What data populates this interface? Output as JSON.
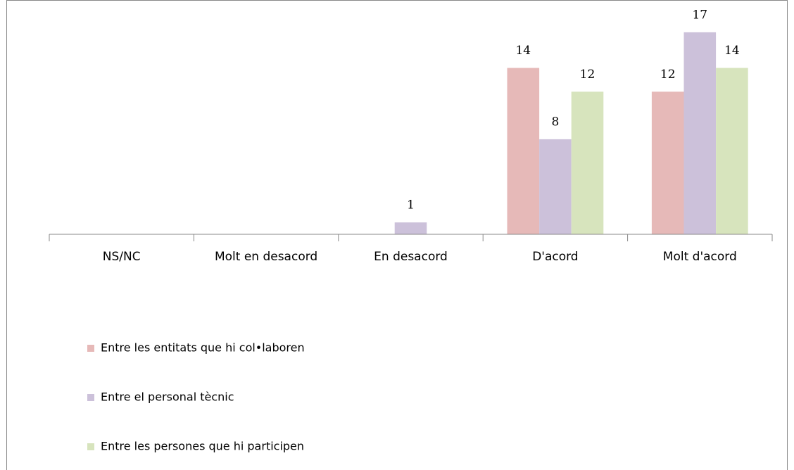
{
  "chart_data": {
    "type": "bar",
    "categories": [
      "NS/NC",
      "Molt en desacord",
      "En desacord",
      "D'acord",
      "Molt d'acord"
    ],
    "series": [
      {
        "name": "Entre les entitats que hi col•laboren",
        "color": "#e6b9b8",
        "values": [
          null,
          null,
          null,
          14,
          12
        ]
      },
      {
        "name": "Entre el personal tècnic",
        "color": "#ccc1da",
        "values": [
          null,
          null,
          1,
          8,
          17
        ]
      },
      {
        "name": "Entre les persones que hi participen",
        "color": "#d7e4bd",
        "values": [
          null,
          null,
          null,
          12,
          14
        ]
      }
    ],
    "ylim": [
      0,
      18
    ]
  }
}
